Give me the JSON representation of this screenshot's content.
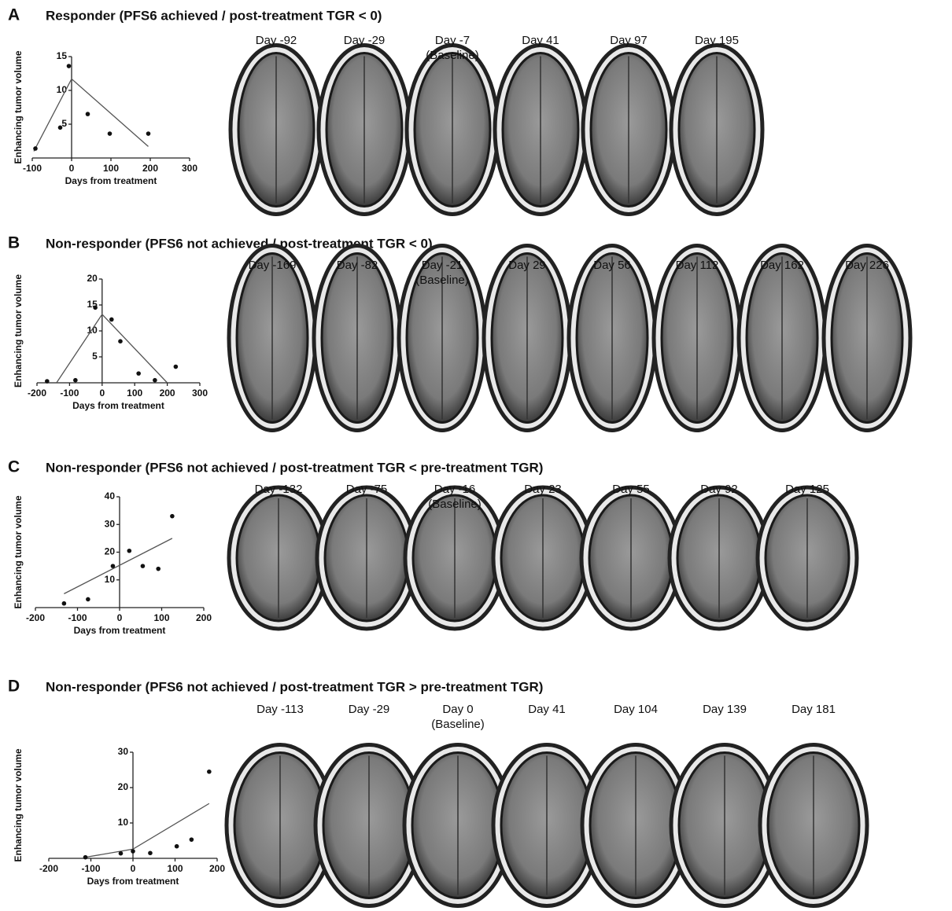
{
  "chart_data": [
    {
      "type": "scatter",
      "panel": "A",
      "title": "Responder (PFS6 achieved / post-treatment TGR < 0)",
      "xlabel": "Days from treatment",
      "ylabel": "Enhancing tumor volume",
      "x": [
        -92,
        -29,
        -7,
        41,
        97,
        195
      ],
      "values": [
        1.4,
        4.5,
        13.6,
        6.5,
        3.6,
        3.6
      ],
      "fit": {
        "x": [
          -96,
          0,
          195
        ],
        "y": [
          1,
          11.7,
          1.7
        ]
      },
      "xlim": [
        -100,
        300
      ],
      "ylim": [
        0,
        15
      ],
      "xticks": [
        -100,
        0,
        100,
        200,
        300
      ],
      "yticks": [
        5,
        10,
        15
      ],
      "scans": [
        {
          "label": "Day -92"
        },
        {
          "label": "Day -29"
        },
        {
          "label": "Day -7",
          "note": "(Baseline)"
        },
        {
          "label": "Day 41"
        },
        {
          "label": "Day 97"
        },
        {
          "label": "Day 195"
        }
      ]
    },
    {
      "type": "scatter",
      "panel": "B",
      "title": "Non-responder (PFS6 not achieved / post-treatment TGR < 0)",
      "xlabel": "Days from treatment",
      "ylabel": "Enhancing tumor volume",
      "x": [
        -169,
        -82,
        -21,
        29,
        56,
        112,
        162,
        226
      ],
      "values": [
        0.3,
        0.5,
        14.5,
        12.2,
        8,
        1.8,
        0.5,
        3.1
      ],
      "fit": {
        "x": [
          -140,
          0,
          200
        ],
        "y": [
          0,
          13.2,
          0
        ]
      },
      "xlim": [
        -200,
        300
      ],
      "ylim": [
        0,
        20
      ],
      "xticks": [
        -200,
        -100,
        0,
        100,
        200,
        300
      ],
      "yticks": [
        5,
        10,
        15,
        20
      ],
      "scans": [
        {
          "label": "Day -169"
        },
        {
          "label": "Day -82"
        },
        {
          "label": "Day -21",
          "note": "(Baseline)"
        },
        {
          "label": "Day 29"
        },
        {
          "label": "Day 56"
        },
        {
          "label": "Day 112"
        },
        {
          "label": "Day 162"
        },
        {
          "label": "Day 226"
        }
      ]
    },
    {
      "type": "scatter",
      "panel": "C",
      "title": "Non-responder (PFS6 not achieved / post-treatment TGR < pre-treatment TGR)",
      "xlabel": "Days from treatment",
      "ylabel": "Enhancing tumor volume",
      "x": [
        -132,
        -75,
        -16,
        23,
        55,
        92,
        125
      ],
      "values": [
        1.5,
        3,
        15,
        20.5,
        15,
        14,
        33
      ],
      "fit": {
        "x": [
          -132,
          125
        ],
        "y": [
          5,
          25
        ]
      },
      "xlim": [
        -200,
        200
      ],
      "ylim": [
        0,
        40
      ],
      "xticks": [
        -200,
        -100,
        0,
        100,
        200
      ],
      "yticks": [
        10,
        20,
        30,
        40
      ],
      "scans": [
        {
          "label": "Day -132"
        },
        {
          "label": "Day -75"
        },
        {
          "label": "Day -16",
          "note": "(Baseline)"
        },
        {
          "label": "Day 23"
        },
        {
          "label": "Day 55"
        },
        {
          "label": "Day 92"
        },
        {
          "label": "Day 125"
        }
      ]
    },
    {
      "type": "scatter",
      "panel": "D",
      "title": "Non-responder (PFS6 not achieved / post-treatment TGR > pre-treatment TGR)",
      "xlabel": "Days from treatment",
      "ylabel": "Enhancing tumor volume",
      "x": [
        -113,
        -29,
        0,
        41,
        104,
        139,
        181
      ],
      "values": [
        0.3,
        1.4,
        2,
        1.5,
        3.4,
        5.3,
        24.5
      ],
      "fit": {
        "x": [
          -113,
          0,
          181
        ],
        "y": [
          0.3,
          2.6,
          15.5
        ]
      },
      "xlim": [
        -200,
        200
      ],
      "ylim": [
        0,
        30
      ],
      "xticks": [
        -200,
        -100,
        0,
        100,
        200
      ],
      "yticks": [
        10,
        20,
        30
      ],
      "scans": [
        {
          "label": "Day -113"
        },
        {
          "label": "Day -29"
        },
        {
          "label": "Day 0",
          "note": "(Baseline)"
        },
        {
          "label": "Day 41"
        },
        {
          "label": "Day 104"
        },
        {
          "label": "Day 139"
        },
        {
          "label": "Day 181"
        }
      ]
    }
  ]
}
